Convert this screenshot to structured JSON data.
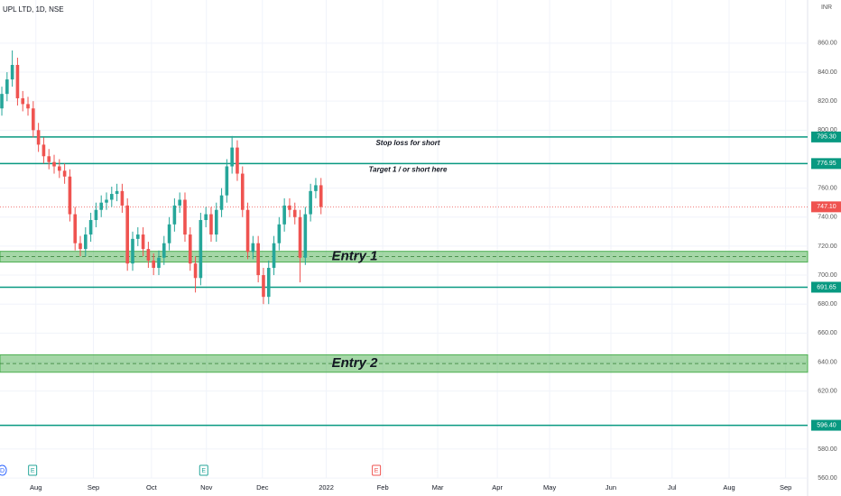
{
  "chart_data": {
    "type": "candlestick",
    "title": "UPL LTD, 1D, NSE",
    "currency": "INR",
    "up_color": "#26a69a",
    "down_color": "#ef5350",
    "grid": true,
    "xlim": [
      -0.35,
      154
    ],
    "ylim": [
      547.6,
      889.8
    ],
    "xticks": [
      {
        "value": 6.5,
        "label": "Aug"
      },
      {
        "value": 17.5,
        "label": "Sep"
      },
      {
        "value": 28.6,
        "label": "Oct"
      },
      {
        "value": 39.1,
        "label": "Nov"
      },
      {
        "value": 49.8,
        "label": "Dec"
      },
      {
        "value": 62,
        "label": "2022"
      },
      {
        "value": 72.8,
        "label": "Feb"
      },
      {
        "value": 83.3,
        "label": "Mar"
      },
      {
        "value": 94.7,
        "label": "Apr"
      },
      {
        "value": 104.7,
        "label": "May"
      },
      {
        "value": 116.4,
        "label": "Jun"
      },
      {
        "value": 128.1,
        "label": "Jul"
      },
      {
        "value": 139,
        "label": "Aug"
      },
      {
        "value": 149.8,
        "label": "Sep"
      }
    ],
    "yticks": [
      {
        "value": 860,
        "label": "860.00"
      },
      {
        "value": 840,
        "label": "840.00"
      },
      {
        "value": 820,
        "label": "820.00"
      },
      {
        "value": 800,
        "label": "800.00"
      },
      {
        "value": 760,
        "label": "760.00"
      },
      {
        "value": 740,
        "label": "740.00"
      },
      {
        "value": 720,
        "label": "720.00"
      },
      {
        "value": 700,
        "label": "700.00"
      },
      {
        "value": 680,
        "label": "680.00"
      },
      {
        "value": 660,
        "label": "660.00"
      },
      {
        "value": 640,
        "label": "640.00"
      },
      {
        "value": 620,
        "label": "620.00"
      },
      {
        "value": 580,
        "label": "580.00"
      },
      {
        "value": 560,
        "label": "560.00"
      }
    ],
    "open": [
      815,
      825,
      835,
      845,
      822,
      818,
      815,
      800,
      790,
      782,
      778,
      775,
      772,
      768,
      742,
      722,
      718,
      728,
      738,
      745,
      750,
      752,
      756,
      758,
      748,
      708,
      725,
      728,
      718,
      710,
      705,
      712,
      722,
      735,
      748,
      752,
      728,
      708,
      698,
      738,
      742,
      728,
      745,
      755,
      775,
      788,
      770,
      745,
      716,
      722,
      700,
      685,
      705,
      722,
      735,
      748,
      745,
      740,
      712,
      742,
      758,
      762
    ],
    "high": [
      830,
      840,
      855,
      850,
      827,
      823,
      820,
      805,
      795,
      787,
      783,
      780,
      777,
      773,
      747,
      727,
      733,
      743,
      750,
      755,
      757,
      761,
      763,
      763,
      753,
      730,
      733,
      733,
      723,
      715,
      717,
      727,
      740,
      753,
      757,
      757,
      733,
      713,
      743,
      747,
      747,
      750,
      760,
      780,
      796,
      793,
      775,
      750,
      727,
      727,
      705,
      710,
      727,
      740,
      753,
      753,
      750,
      745,
      747,
      763,
      767,
      767
    ],
    "low": [
      810,
      820,
      830,
      817,
      813,
      810,
      795,
      785,
      777,
      773,
      770,
      767,
      763,
      737,
      717,
      713,
      713,
      723,
      733,
      740,
      745,
      747,
      751,
      743,
      703,
      703,
      720,
      713,
      705,
      700,
      700,
      707,
      717,
      730,
      743,
      723,
      703,
      688,
      693,
      733,
      723,
      723,
      740,
      750,
      770,
      765,
      740,
      711,
      711,
      695,
      680,
      680,
      700,
      717,
      730,
      740,
      735,
      695,
      707,
      737,
      753,
      742
    ],
    "close": [
      825,
      835,
      845,
      822,
      818,
      815,
      800,
      790,
      782,
      778,
      775,
      772,
      768,
      742,
      722,
      718,
      728,
      738,
      745,
      750,
      752,
      756,
      758,
      748,
      708,
      725,
      728,
      718,
      710,
      705,
      712,
      722,
      735,
      748,
      752,
      728,
      708,
      698,
      738,
      742,
      728,
      745,
      755,
      775,
      788,
      770,
      745,
      716,
      722,
      700,
      685,
      705,
      722,
      735,
      748,
      745,
      740,
      712,
      742,
      758,
      762,
      747
    ],
    "last": {
      "value": 747.1,
      "label": "747.10"
    },
    "levels": [
      {
        "value": 795.3,
        "label": "795.30",
        "note": "Stop loss for short"
      },
      {
        "value": 776.95,
        "label": "776.95",
        "note": "Target 1 / or short here"
      },
      {
        "value": 691.65,
        "label": "691.65"
      },
      {
        "value": 596.4,
        "label": "596.40"
      }
    ],
    "level_color": "#089981",
    "zones": [
      {
        "low": 709,
        "high": 716.4,
        "label": "Entry 1"
      },
      {
        "low": 633,
        "high": 645,
        "label": "Entry 2"
      }
    ],
    "events": [
      {
        "x": 0,
        "label": "D"
      },
      {
        "x": 5.8,
        "label": "E"
      },
      {
        "x": 38.5,
        "label": "E"
      },
      {
        "x": 71.5,
        "label": "E"
      }
    ]
  }
}
